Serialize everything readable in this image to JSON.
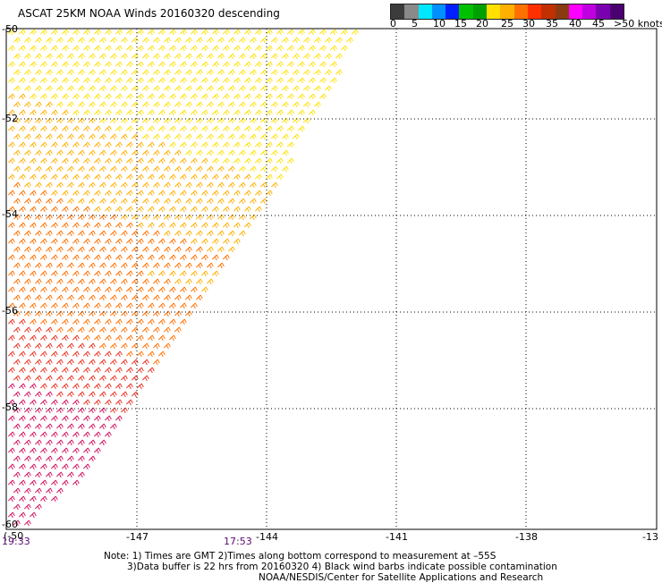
{
  "title": "ASCAT 25KM NOAA Winds 20160320 descending",
  "legend": {
    "labels": [
      "0",
      "5",
      "10",
      "15",
      "20",
      "25",
      "30",
      "35",
      "40",
      "45",
      ">50 knots"
    ],
    "colors": [
      "#3c3c3c",
      "#8a8a8a",
      "#00e8ff",
      "#0090ff",
      "#0020ff",
      "#00c000",
      "#00a000",
      "#ffe000",
      "#ffb000",
      "#ff7000",
      "#ff3000",
      "#c03000",
      "#8a3a10",
      "#ff00ff",
      "#c000e0",
      "#7a00b0",
      "#4a0070"
    ]
  },
  "map": {
    "lat_labels": [
      "-50",
      "-52",
      "-54",
      "-56",
      "-58",
      "-60"
    ],
    "lon_labels": [
      "-147",
      "-144",
      "-141",
      "-138",
      "-13"
    ],
    "corner_label": "(-50",
    "time_labels": [
      "19:33",
      "17:53"
    ]
  },
  "notes": {
    "line1": "Note: 1) Times are GMT 2)Times along bottom correspond to measurement at –55S",
    "line2": "3)Data buffer is 22 hrs from 20160320 4) Black wind barbs indicate possible contamination",
    "line3": "NOAA/NESDIS/Center for Satellite Applications and Research"
  },
  "barb_colors": {
    "light": "#ffe000",
    "mid": "#ffb000",
    "orange": "#ff7000",
    "red": "#e83020",
    "magenta": "#d01060"
  }
}
